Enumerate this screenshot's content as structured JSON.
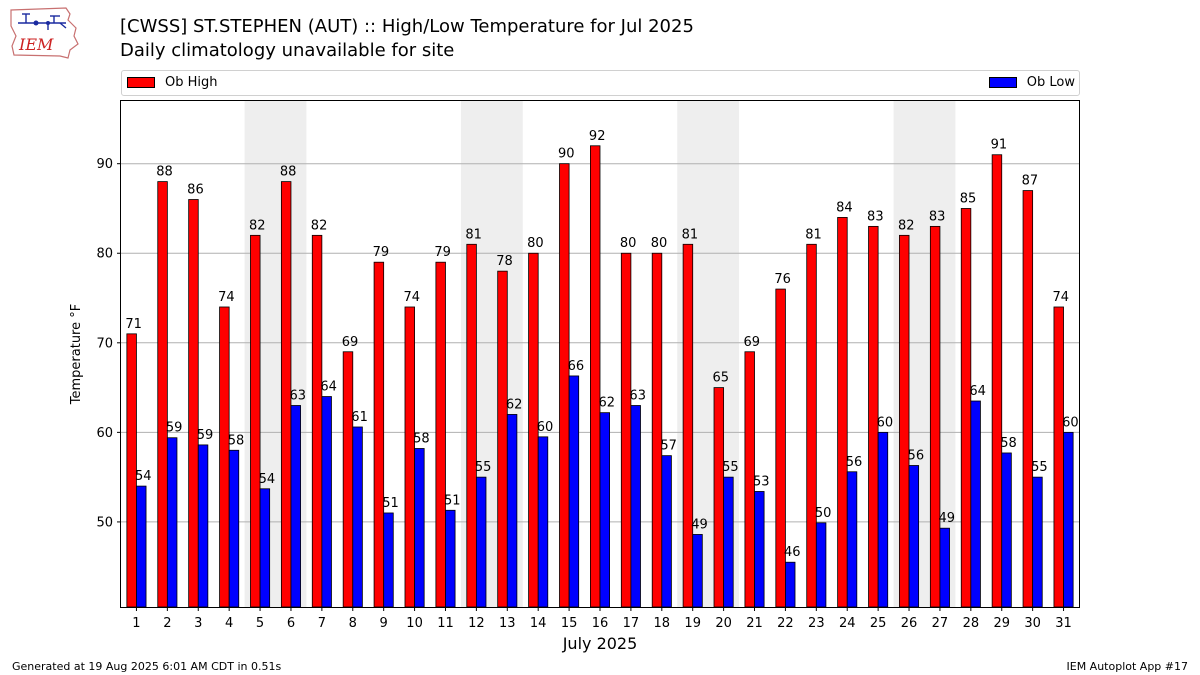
{
  "header": {
    "title": "[CWSS] ST.STEPHEN (AUT) :: High/Low Temperature for Jul 2025",
    "subtitle": "Daily climatology unavailable for site",
    "logo_text": "IEM"
  },
  "legend": {
    "high_label": "Ob High",
    "low_label": "Ob Low",
    "placement": "top (above plot)"
  },
  "colors": {
    "high": "#ff0000",
    "low": "#0000ff",
    "weekend_band": "#eeeeee",
    "grid": "#b0b0b0"
  },
  "footer": {
    "left": "Generated at 19 Aug 2025 6:01 AM CDT in 0.51s",
    "right": "IEM Autoplot App #17"
  },
  "chart_data": {
    "type": "bar",
    "title": "[CWSS] ST.STEPHEN (AUT) :: High/Low Temperature for Jul 2025",
    "subtitle": "Daily climatology unavailable for site",
    "xlabel": "July 2025",
    "ylabel": "Temperature °F",
    "ylim": [
      40.5,
      97
    ],
    "yticks": [
      50,
      60,
      70,
      80,
      90
    ],
    "grid": true,
    "categories": [
      "1",
      "2",
      "3",
      "4",
      "5",
      "6",
      "7",
      "8",
      "9",
      "10",
      "11",
      "12",
      "13",
      "14",
      "15",
      "16",
      "17",
      "18",
      "19",
      "20",
      "21",
      "22",
      "23",
      "24",
      "25",
      "26",
      "27",
      "28",
      "29",
      "30",
      "31"
    ],
    "series": [
      {
        "name": "Ob High",
        "values": [
          71,
          88,
          86,
          74,
          82,
          88,
          82,
          69,
          79,
          74,
          79,
          81,
          78,
          80,
          90,
          92,
          80,
          80,
          81,
          65,
          69,
          76,
          81,
          84,
          83,
          82,
          83,
          85,
          91,
          87,
          74
        ],
        "labels": [
          "71",
          "88",
          "86",
          "74",
          "82",
          "88",
          "82",
          "69",
          "79",
          "74",
          "79",
          "81",
          "78",
          "80",
          "90",
          "92",
          "80",
          "80",
          "81",
          "65",
          "69",
          "76",
          "81",
          "84",
          "83",
          "82",
          "83",
          "85",
          "91",
          "87",
          "74"
        ]
      },
      {
        "name": "Ob Low",
        "values": [
          54,
          59.4,
          58.6,
          58,
          53.7,
          63,
          64,
          60.6,
          51,
          58.2,
          51.3,
          55,
          62,
          59.5,
          66.3,
          62.2,
          63,
          57.4,
          48.6,
          55,
          53.4,
          45.5,
          49.9,
          55.6,
          60,
          56.3,
          49.3,
          63.5,
          57.7,
          55,
          60
        ],
        "labels": [
          "54",
          "59",
          "59",
          "58",
          "54",
          "63",
          "64",
          "61",
          "51",
          "58",
          "51",
          "55",
          "62",
          "60",
          "66",
          "62",
          "63",
          "57",
          "49",
          "55",
          "53",
          "46",
          "50",
          "56",
          "60",
          "56",
          "49",
          "64",
          "58",
          "55",
          "60"
        ]
      }
    ],
    "weekend_bands": [
      [
        5,
        6
      ],
      [
        12,
        13
      ],
      [
        19,
        20
      ],
      [
        26,
        27
      ]
    ]
  }
}
